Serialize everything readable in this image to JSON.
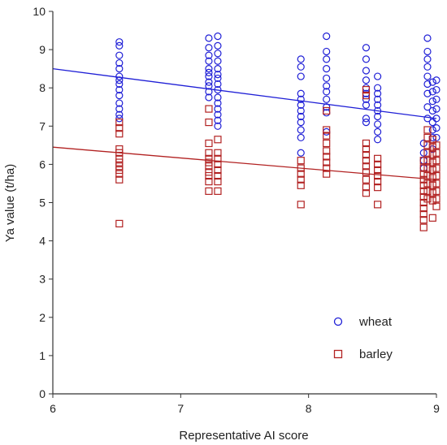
{
  "chart_data": {
    "type": "scatter",
    "title": "",
    "xlabel": "Representative AI score",
    "ylabel": "Ya value (t/ha)",
    "xlim": [
      6,
      9
    ],
    "ylim": [
      0,
      10
    ],
    "xticks": [
      "6",
      "7",
      "8",
      "9"
    ],
    "yticks": [
      "0",
      "1",
      "2",
      "3",
      "4",
      "5",
      "6",
      "7",
      "8",
      "9",
      "10"
    ],
    "grid": false,
    "legend_position": "bottom-right",
    "series": [
      {
        "name": "wheat",
        "marker": "circle",
        "color": "#1f1fd6",
        "points": [
          [
            6.52,
            9.2
          ],
          [
            6.52,
            9.1
          ],
          [
            6.52,
            8.85
          ],
          [
            6.52,
            8.65
          ],
          [
            6.52,
            8.5
          ],
          [
            6.52,
            8.3
          ],
          [
            6.52,
            8.2
          ],
          [
            6.52,
            8.1
          ],
          [
            6.52,
            7.95
          ],
          [
            6.52,
            7.8
          ],
          [
            6.52,
            7.6
          ],
          [
            6.52,
            7.45
          ],
          [
            6.52,
            7.3
          ],
          [
            6.52,
            7.2
          ],
          [
            7.22,
            9.3
          ],
          [
            7.22,
            9.05
          ],
          [
            7.22,
            8.85
          ],
          [
            7.22,
            8.7
          ],
          [
            7.22,
            8.5
          ],
          [
            7.22,
            8.4
          ],
          [
            7.22,
            8.3
          ],
          [
            7.22,
            8.15
          ],
          [
            7.22,
            8.05
          ],
          [
            7.22,
            7.9
          ],
          [
            7.22,
            7.75
          ],
          [
            7.29,
            9.35
          ],
          [
            7.29,
            9.1
          ],
          [
            7.29,
            8.9
          ],
          [
            7.29,
            8.7
          ],
          [
            7.29,
            8.5
          ],
          [
            7.29,
            8.35
          ],
          [
            7.29,
            8.25
          ],
          [
            7.29,
            8.1
          ],
          [
            7.29,
            7.95
          ],
          [
            7.29,
            7.75
          ],
          [
            7.29,
            7.6
          ],
          [
            7.29,
            7.45
          ],
          [
            7.29,
            7.3
          ],
          [
            7.29,
            7.15
          ],
          [
            7.29,
            7.0
          ],
          [
            7.94,
            8.75
          ],
          [
            7.94,
            8.55
          ],
          [
            7.94,
            8.3
          ],
          [
            7.94,
            7.85
          ],
          [
            7.94,
            7.7
          ],
          [
            7.94,
            7.55
          ],
          [
            7.94,
            7.4
          ],
          [
            7.94,
            7.25
          ],
          [
            7.94,
            7.1
          ],
          [
            7.94,
            6.9
          ],
          [
            7.94,
            6.7
          ],
          [
            7.94,
            6.3
          ],
          [
            8.14,
            9.35
          ],
          [
            8.14,
            8.95
          ],
          [
            8.14,
            8.75
          ],
          [
            8.14,
            8.5
          ],
          [
            8.14,
            8.25
          ],
          [
            8.14,
            8.05
          ],
          [
            8.14,
            7.9
          ],
          [
            8.14,
            7.7
          ],
          [
            8.14,
            7.5
          ],
          [
            8.14,
            7.35
          ],
          [
            8.14,
            6.85
          ],
          [
            8.45,
            9.05
          ],
          [
            8.45,
            8.75
          ],
          [
            8.45,
            8.45
          ],
          [
            8.45,
            8.2
          ],
          [
            8.45,
            8.0
          ],
          [
            8.45,
            7.85
          ],
          [
            8.45,
            7.7
          ],
          [
            8.45,
            7.55
          ],
          [
            8.45,
            7.2
          ],
          [
            8.45,
            7.1
          ],
          [
            8.54,
            8.3
          ],
          [
            8.54,
            8.0
          ],
          [
            8.54,
            7.85
          ],
          [
            8.54,
            7.7
          ],
          [
            8.54,
            7.55
          ],
          [
            8.54,
            7.4
          ],
          [
            8.54,
            7.25
          ],
          [
            8.54,
            7.05
          ],
          [
            8.54,
            6.85
          ],
          [
            8.54,
            6.65
          ],
          [
            8.9,
            6.55
          ],
          [
            8.9,
            6.3
          ],
          [
            8.9,
            6.1
          ],
          [
            8.9,
            5.9
          ],
          [
            8.93,
            9.3
          ],
          [
            8.93,
            8.95
          ],
          [
            8.93,
            8.75
          ],
          [
            8.93,
            8.55
          ],
          [
            8.93,
            8.3
          ],
          [
            8.93,
            8.1
          ],
          [
            8.93,
            7.85
          ],
          [
            8.93,
            7.5
          ],
          [
            8.93,
            7.2
          ],
          [
            8.97,
            8.15
          ],
          [
            8.97,
            7.9
          ],
          [
            8.97,
            7.65
          ],
          [
            8.97,
            7.4
          ],
          [
            8.97,
            7.1
          ],
          [
            8.97,
            6.9
          ],
          [
            8.97,
            6.7
          ],
          [
            8.97,
            6.4
          ],
          [
            9.0,
            8.2
          ],
          [
            9.0,
            7.95
          ],
          [
            9.0,
            7.7
          ],
          [
            9.0,
            7.45
          ],
          [
            9.0,
            7.2
          ],
          [
            9.0,
            6.95
          ],
          [
            9.0,
            6.7
          ]
        ],
        "trendline": [
          [
            6,
            8.5
          ],
          [
            9,
            7.2
          ]
        ]
      },
      {
        "name": "barley",
        "marker": "square",
        "color": "#b22222",
        "points": [
          [
            6.52,
            7.1
          ],
          [
            6.52,
            6.95
          ],
          [
            6.52,
            6.8
          ],
          [
            6.52,
            6.4
          ],
          [
            6.52,
            6.3
          ],
          [
            6.52,
            6.15
          ],
          [
            6.52,
            6.05
          ],
          [
            6.52,
            5.95
          ],
          [
            6.52,
            5.85
          ],
          [
            6.52,
            5.75
          ],
          [
            6.52,
            5.6
          ],
          [
            6.52,
            4.45
          ],
          [
            7.22,
            7.45
          ],
          [
            7.22,
            7.1
          ],
          [
            7.22,
            6.55
          ],
          [
            7.22,
            6.3
          ],
          [
            7.22,
            6.15
          ],
          [
            7.22,
            6.05
          ],
          [
            7.22,
            5.95
          ],
          [
            7.22,
            5.8
          ],
          [
            7.22,
            5.7
          ],
          [
            7.22,
            5.55
          ],
          [
            7.22,
            5.3
          ],
          [
            7.29,
            6.65
          ],
          [
            7.29,
            6.3
          ],
          [
            7.29,
            6.15
          ],
          [
            7.29,
            6.0
          ],
          [
            7.29,
            5.85
          ],
          [
            7.29,
            5.7
          ],
          [
            7.29,
            5.55
          ],
          [
            7.29,
            5.3
          ],
          [
            7.94,
            6.1
          ],
          [
            7.94,
            5.9
          ],
          [
            7.94,
            5.75
          ],
          [
            7.94,
            5.6
          ],
          [
            7.94,
            5.45
          ],
          [
            7.94,
            4.95
          ],
          [
            8.14,
            7.4
          ],
          [
            8.14,
            6.9
          ],
          [
            8.14,
            6.75
          ],
          [
            8.14,
            6.55
          ],
          [
            8.14,
            6.35
          ],
          [
            8.14,
            6.2
          ],
          [
            8.14,
            6.05
          ],
          [
            8.14,
            5.9
          ],
          [
            8.14,
            5.75
          ],
          [
            8.45,
            7.95
          ],
          [
            8.45,
            7.8
          ],
          [
            8.45,
            6.55
          ],
          [
            8.45,
            6.4
          ],
          [
            8.45,
            6.25
          ],
          [
            8.45,
            6.1
          ],
          [
            8.45,
            5.95
          ],
          [
            8.45,
            5.8
          ],
          [
            8.45,
            5.6
          ],
          [
            8.45,
            5.4
          ],
          [
            8.45,
            5.25
          ],
          [
            8.54,
            6.15
          ],
          [
            8.54,
            6.0
          ],
          [
            8.54,
            5.85
          ],
          [
            8.54,
            5.7
          ],
          [
            8.54,
            5.55
          ],
          [
            8.54,
            5.4
          ],
          [
            8.54,
            4.95
          ],
          [
            8.9,
            6.1
          ],
          [
            8.9,
            5.9
          ],
          [
            8.9,
            5.75
          ],
          [
            8.9,
            5.6
          ],
          [
            8.9,
            5.45
          ],
          [
            8.9,
            5.3
          ],
          [
            8.9,
            5.15
          ],
          [
            8.9,
            5.0
          ],
          [
            8.9,
            4.85
          ],
          [
            8.9,
            4.7
          ],
          [
            8.9,
            4.55
          ],
          [
            8.9,
            4.35
          ],
          [
            8.93,
            6.9
          ],
          [
            8.93,
            6.7
          ],
          [
            8.93,
            6.5
          ],
          [
            8.93,
            6.3
          ],
          [
            8.93,
            6.1
          ],
          [
            8.93,
            5.9
          ],
          [
            8.93,
            5.7
          ],
          [
            8.93,
            5.5
          ],
          [
            8.93,
            5.3
          ],
          [
            8.93,
            5.1
          ],
          [
            8.97,
            6.65
          ],
          [
            8.97,
            6.45
          ],
          [
            8.97,
            6.25
          ],
          [
            8.97,
            6.05
          ],
          [
            8.97,
            5.85
          ],
          [
            8.97,
            5.65
          ],
          [
            8.97,
            5.45
          ],
          [
            8.97,
            5.25
          ],
          [
            8.97,
            5.05
          ],
          [
            8.97,
            4.6
          ],
          [
            9.0,
            6.5
          ],
          [
            9.0,
            6.3
          ],
          [
            9.0,
            6.1
          ],
          [
            9.0,
            5.9
          ],
          [
            9.0,
            5.7
          ],
          [
            9.0,
            5.5
          ],
          [
            9.0,
            5.3
          ],
          [
            9.0,
            5.1
          ],
          [
            9.0,
            4.9
          ]
        ],
        "trendline": [
          [
            6,
            6.45
          ],
          [
            9,
            5.6
          ]
        ]
      }
    ]
  }
}
